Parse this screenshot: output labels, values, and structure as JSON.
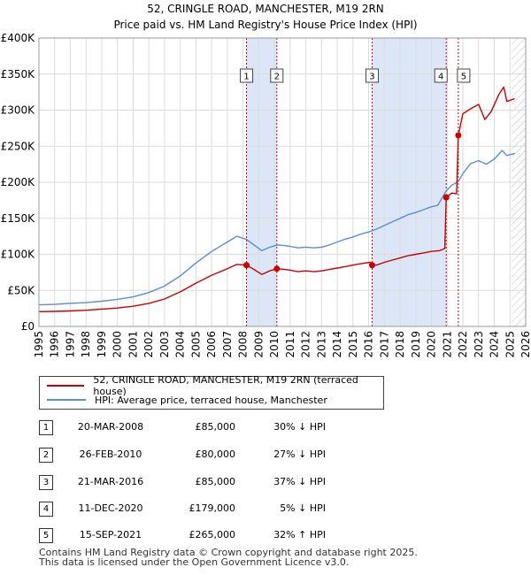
{
  "title_line1": "52, CRINGLE ROAD, MANCHESTER, M19 2RN",
  "title_line2": "Price paid vs. HM Land Registry's House Price Index (HPI)",
  "colors": {
    "price": "#cc0000",
    "hpi": "#5b8ed0",
    "shade": "#dbe6f7",
    "grid": "#dcdcdc",
    "marker_line": "#cc0000"
  },
  "legend": {
    "price_label": "52, CRINGLE ROAD, MANCHESTER, M19 2RN (terraced house)",
    "hpi_label": "HPI: Average price, terraced house, Manchester"
  },
  "transactions": [
    {
      "num": "1",
      "date": "20-MAR-2008",
      "price": "£85,000",
      "hpi": "30% ↓ HPI"
    },
    {
      "num": "2",
      "date": "26-FEB-2010",
      "price": "£80,000",
      "hpi": "27% ↓ HPI"
    },
    {
      "num": "3",
      "date": "21-MAR-2016",
      "price": "£85,000",
      "hpi": "37% ↓ HPI"
    },
    {
      "num": "4",
      "date": "11-DEC-2020",
      "price": "£179,000",
      "hpi": "5% ↓ HPI"
    },
    {
      "num": "5",
      "date": "15-SEP-2021",
      "price": "£265,000",
      "hpi": "32% ↑ HPI"
    }
  ],
  "footer_line1": "Contains HM Land Registry data © Crown copyright and database right 2025.",
  "footer_line2": "This data is licensed under the Open Government Licence v3.0.",
  "chart_data": {
    "type": "line",
    "title": "52, CRINGLE ROAD, MANCHESTER, M19 2RN — Price paid vs. HM Land Registry's House Price Index (HPI)",
    "xlabel": "",
    "ylabel": "",
    "xlim": [
      1995,
      2026
    ],
    "ylim": [
      0,
      400000
    ],
    "x_ticks": [
      1995,
      1996,
      1997,
      1998,
      1999,
      2000,
      2001,
      2002,
      2003,
      2004,
      2005,
      2006,
      2007,
      2008,
      2009,
      2010,
      2011,
      2012,
      2013,
      2014,
      2015,
      2016,
      2017,
      2018,
      2019,
      2020,
      2021,
      2022,
      2023,
      2024,
      2025,
      2026
    ],
    "y_ticks": [
      0,
      50000,
      100000,
      150000,
      200000,
      250000,
      300000,
      350000,
      400000
    ],
    "y_tick_labels": [
      "£0",
      "£50K",
      "£100K",
      "£150K",
      "£200K",
      "£250K",
      "£300K",
      "£350K",
      "£400K"
    ],
    "grid": true,
    "legend_position": "below",
    "shaded_periods": [
      [
        2008.22,
        2010.15
      ],
      [
        2016.22,
        2020.94
      ],
      [
        2021.71,
        2021.71
      ]
    ],
    "hatched_region": [
      2025.1,
      2026
    ],
    "sales": [
      {
        "label": "1",
        "x": 2008.22,
        "y": 85000
      },
      {
        "label": "2",
        "x": 2010.15,
        "y": 80000
      },
      {
        "label": "3",
        "x": 2016.22,
        "y": 85000
      },
      {
        "label": "4",
        "x": 2020.94,
        "y": 179000
      },
      {
        "label": "5",
        "x": 2021.71,
        "y": 265000
      }
    ],
    "series": [
      {
        "name": "HPI: Average price, terraced house, Manchester",
        "points": [
          [
            1995,
            30000
          ],
          [
            1996,
            30500
          ],
          [
            1997,
            32000
          ],
          [
            1998,
            33000
          ],
          [
            1999,
            35000
          ],
          [
            2000,
            37500
          ],
          [
            2001,
            41000
          ],
          [
            2002,
            47000
          ],
          [
            2003,
            56000
          ],
          [
            2004,
            70000
          ],
          [
            2005,
            88000
          ],
          [
            2006,
            104000
          ],
          [
            2007,
            117000
          ],
          [
            2007.6,
            125000
          ],
          [
            2008.2,
            121000
          ],
          [
            2008.7,
            113000
          ],
          [
            2009.2,
            105000
          ],
          [
            2009.7,
            110000
          ],
          [
            2010.2,
            113000
          ],
          [
            2010.7,
            112000
          ],
          [
            2011,
            111000
          ],
          [
            2011.5,
            109000
          ],
          [
            2012,
            110000
          ],
          [
            2012.5,
            109000
          ],
          [
            2013,
            110000
          ],
          [
            2013.5,
            113000
          ],
          [
            2014,
            117000
          ],
          [
            2014.5,
            121000
          ],
          [
            2015,
            124000
          ],
          [
            2015.5,
            128000
          ],
          [
            2016,
            131000
          ],
          [
            2016.5,
            135000
          ],
          [
            2017,
            140000
          ],
          [
            2017.5,
            145000
          ],
          [
            2018,
            150000
          ],
          [
            2018.5,
            155000
          ],
          [
            2019,
            158000
          ],
          [
            2019.5,
            162000
          ],
          [
            2020,
            166000
          ],
          [
            2020.4,
            168000
          ],
          [
            2020.94,
            188000
          ],
          [
            2021.3,
            196000
          ],
          [
            2021.71,
            201000
          ],
          [
            2022,
            212000
          ],
          [
            2022.5,
            226000
          ],
          [
            2023,
            230000
          ],
          [
            2023.5,
            225000
          ],
          [
            2024,
            232000
          ],
          [
            2024.5,
            244000
          ],
          [
            2024.8,
            237000
          ],
          [
            2025.3,
            240000
          ]
        ]
      },
      {
        "name": "52, CRINGLE ROAD, MANCHESTER, M19 2RN (terraced house)",
        "points": [
          [
            1995,
            20500
          ],
          [
            1996,
            20800
          ],
          [
            1997,
            21500
          ],
          [
            1998,
            22500
          ],
          [
            1999,
            24000
          ],
          [
            2000,
            25500
          ],
          [
            2001,
            28000
          ],
          [
            2002,
            32000
          ],
          [
            2003,
            38000
          ],
          [
            2004,
            48000
          ],
          [
            2005,
            60000
          ],
          [
            2006,
            71000
          ],
          [
            2007,
            80000
          ],
          [
            2007.6,
            86000
          ],
          [
            2008.22,
            85000
          ],
          [
            2008.7,
            79000
          ],
          [
            2009.2,
            72000
          ],
          [
            2009.7,
            77000
          ],
          [
            2010.15,
            80000
          ],
          [
            2010.7,
            79000
          ],
          [
            2011,
            78000
          ],
          [
            2011.5,
            76000
          ],
          [
            2012,
            77000
          ],
          [
            2012.5,
            76000
          ],
          [
            2013,
            77000
          ],
          [
            2013.5,
            79000
          ],
          [
            2014,
            81000
          ],
          [
            2014.5,
            83000
          ],
          [
            2015,
            85000
          ],
          [
            2015.5,
            87000
          ],
          [
            2016.1,
            89000
          ],
          [
            2016.22,
            85000
          ],
          [
            2016.5,
            85000
          ],
          [
            2017,
            89000
          ],
          [
            2017.5,
            92000
          ],
          [
            2018,
            95000
          ],
          [
            2018.5,
            98000
          ],
          [
            2019,
            100000
          ],
          [
            2019.5,
            102000
          ],
          [
            2020,
            104000
          ],
          [
            2020.5,
            105000
          ],
          [
            2020.85,
            108000
          ],
          [
            2020.94,
            179000
          ],
          [
            2021.3,
            185000
          ],
          [
            2021.6,
            184000
          ],
          [
            2021.71,
            265000
          ],
          [
            2022,
            295000
          ],
          [
            2022.5,
            302000
          ],
          [
            2023,
            308000
          ],
          [
            2023.4,
            287000
          ],
          [
            2023.8,
            298000
          ],
          [
            2024.3,
            322000
          ],
          [
            2024.6,
            332000
          ],
          [
            2024.8,
            312000
          ],
          [
            2025.3,
            316000
          ]
        ]
      }
    ]
  }
}
